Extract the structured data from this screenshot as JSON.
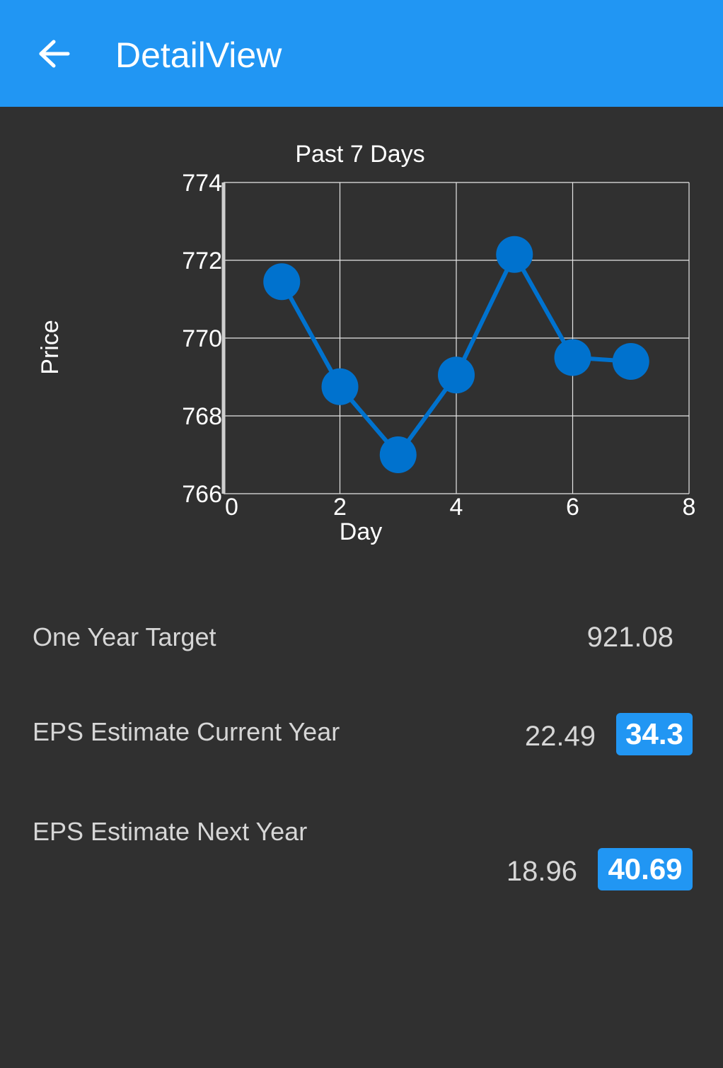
{
  "appbar": {
    "title": "DetailView",
    "back_icon": "arrow-left-icon",
    "color": "#2196F3"
  },
  "chart_data": {
    "type": "line",
    "title": "Past 7 Days",
    "xlabel": "Day",
    "ylabel": "Price",
    "xlim": [
      0,
      8
    ],
    "ylim": [
      766,
      774
    ],
    "x_ticks": [
      "0",
      "2",
      "4",
      "6",
      "8"
    ],
    "y_ticks": [
      "774",
      "772",
      "770",
      "768",
      "766"
    ],
    "grid": true,
    "series": [
      {
        "color": "#0072CE",
        "x": [
          1,
          2,
          3,
          4,
          5,
          6,
          7
        ],
        "y": [
          771.45,
          768.75,
          767.0,
          769.05,
          772.15,
          769.5,
          769.4
        ]
      }
    ]
  },
  "stats": {
    "one_year_target": {
      "label": "One Year Target",
      "value": "921.08"
    },
    "eps_current": {
      "label": "EPS Estimate Current Year",
      "value": "22.49",
      "badge": "34.3"
    },
    "eps_next": {
      "label": "EPS Estimate Next Year",
      "value": "18.96",
      "badge": "40.69"
    }
  }
}
